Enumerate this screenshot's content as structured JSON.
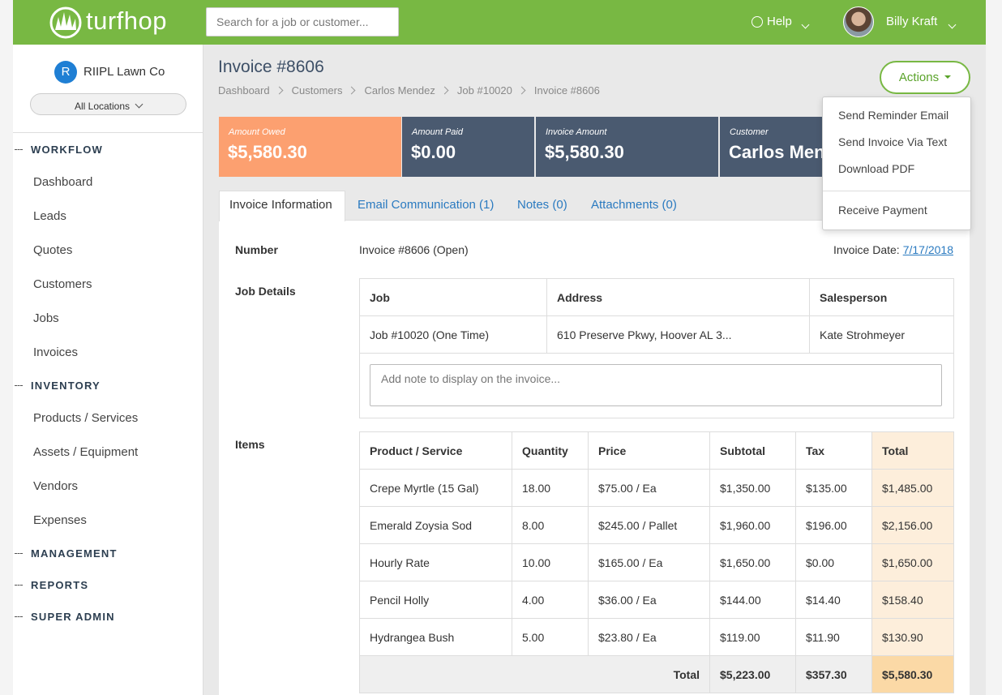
{
  "header": {
    "logo": "turfhop",
    "search_placeholder": "Search for a job or customer...",
    "help": "Help",
    "user": "Billy Kraft"
  },
  "sidebar": {
    "company_initial": "R",
    "company": "RIIPL Lawn Co",
    "location": "All Locations",
    "sections": [
      {
        "title": "WORKFLOW",
        "items": [
          "Dashboard",
          "Leads",
          "Quotes",
          "Customers",
          "Jobs",
          "Invoices"
        ]
      },
      {
        "title": "INVENTORY",
        "items": [
          "Products / Services",
          "Assets / Equipment",
          "Vendors",
          "Expenses"
        ]
      },
      {
        "title": "MANAGEMENT"
      },
      {
        "title": "REPORTS"
      },
      {
        "title": "SUPER ADMIN"
      }
    ]
  },
  "page": {
    "title": "Invoice #8606",
    "breadcrumbs": [
      "Dashboard",
      "Customers",
      "Carlos Mendez",
      "Job #10020",
      "Invoice #8606"
    ],
    "actions": "Actions",
    "actions_menu": [
      "Send Reminder Email",
      "Send Invoice Via Text",
      "Download PDF"
    ],
    "actions_menu_secondary": [
      "Receive Payment"
    ]
  },
  "summary": [
    {
      "label": "Amount Owed",
      "value": "$5,580.30"
    },
    {
      "label": "Amount Paid",
      "value": "$0.00"
    },
    {
      "label": "Invoice Amount",
      "value": "$5,580.30"
    },
    {
      "label": "Customer",
      "value": "Carlos Mendez"
    }
  ],
  "tabs": [
    "Invoice Information",
    "Email Communication (1)",
    "Notes (0)",
    "Attachments (0)"
  ],
  "invoice": {
    "number_label": "Number",
    "number": "Invoice #8606 (Open)",
    "date_label": "Invoice Date:",
    "date": "7/17/2018",
    "job_details_label": "Job Details",
    "job_table": {
      "headers": [
        "Job",
        "Address",
        "Salesperson"
      ],
      "row": [
        "Job #10020 (One Time)",
        "610 Preserve Pkwy, Hoover AL 3...",
        "Kate Strohmeyer"
      ]
    },
    "note_placeholder": "Add note to display on the invoice...",
    "items_label": "Items",
    "items_table": {
      "headers": [
        "Product / Service",
        "Quantity",
        "Price",
        "Subtotal",
        "Tax",
        "Total"
      ],
      "rows": [
        [
          "Crepe Myrtle (15 Gal)",
          "18.00",
          "$75.00 / Ea",
          "$1,350.00",
          "$135.00",
          "$1,485.00"
        ],
        [
          "Emerald Zoysia Sod",
          "8.00",
          "$245.00 / Pallet",
          "$1,960.00",
          "$196.00",
          "$2,156.00"
        ],
        [
          "Hourly Rate",
          "10.00",
          "$165.00 / Ea",
          "$1,650.00",
          "$0.00",
          "$1,650.00"
        ],
        [
          "Pencil Holly",
          "4.00",
          "$36.00 / Ea",
          "$144.00",
          "$14.40",
          "$158.40"
        ],
        [
          "Hydrangea Bush",
          "5.00",
          "$23.80 / Ea",
          "$119.00",
          "$11.90",
          "$130.90"
        ]
      ],
      "total_label": "Total",
      "totals": [
        "$5,223.00",
        "$357.30",
        "$5,580.30"
      ]
    }
  }
}
